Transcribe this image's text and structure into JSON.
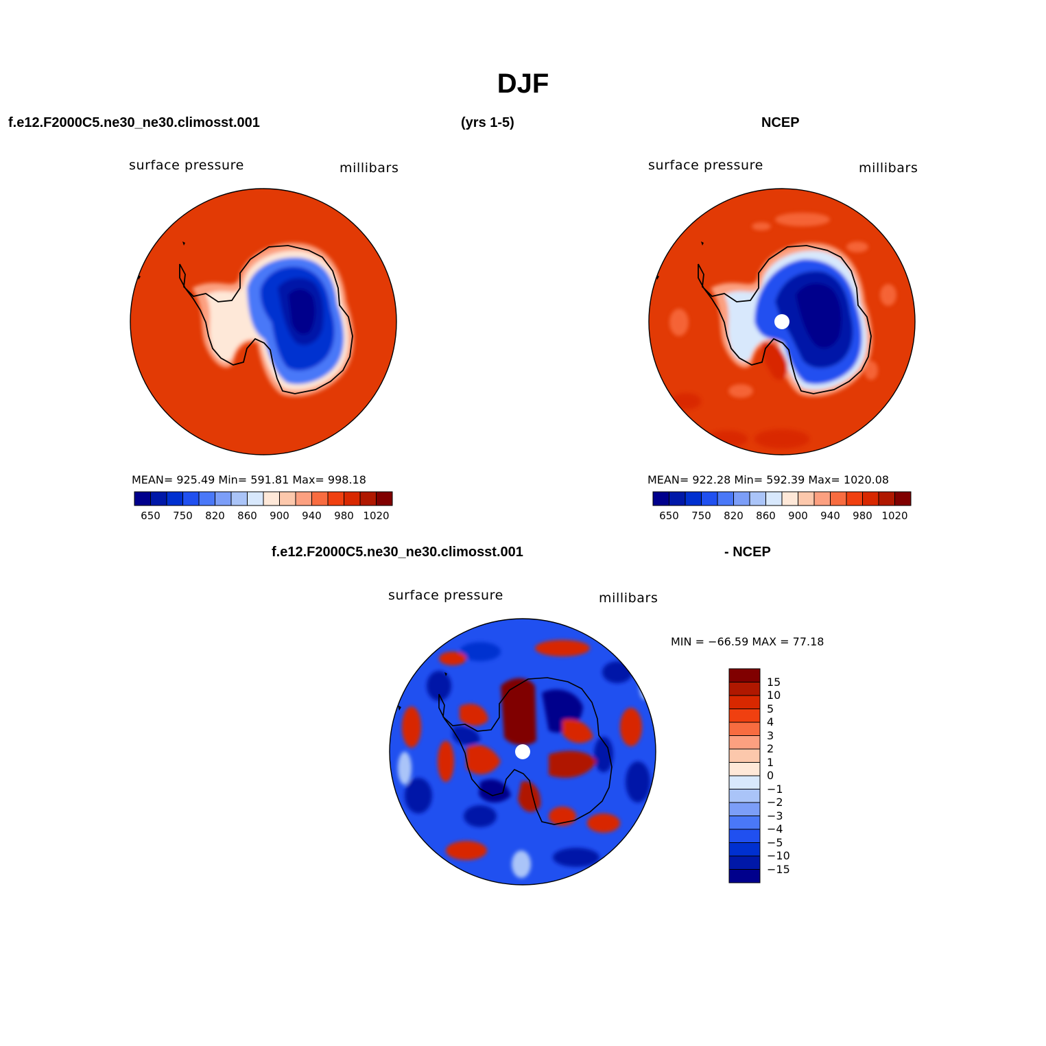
{
  "title": "DJF",
  "header": {
    "case": "f.e12.F2000C5.ne30_ne30.climosst.001",
    "years": "(yrs 1-5)",
    "obs": "NCEP"
  },
  "panels": {
    "model": {
      "variable": "surface pressure",
      "units": "millibars",
      "stats": "MEAN= 925.49   Min= 591.81   Max= 998.18"
    },
    "obs": {
      "variable": "surface pressure",
      "units": "millibars",
      "stats": "MEAN= 922.28   Min= 592.39   Max= 1020.08"
    },
    "diff": {
      "title_left": "f.e12.F2000C5.ne30_ne30.climosst.001",
      "title_right": "- NCEP",
      "variable": "surface pressure",
      "units": "millibars",
      "stats": "MIN = −66.59  MAX =   77.18"
    }
  },
  "colorbars": {
    "absolute": {
      "colors": [
        "#00008c",
        "#0018a8",
        "#0030d0",
        "#2050f0",
        "#4a78f8",
        "#7c9ef8",
        "#aac4f8",
        "#d8e8fc",
        "#fee8d8",
        "#fcc8ac",
        "#fca080",
        "#f86c40",
        "#f04010",
        "#d82800",
        "#b01800",
        "#800000"
      ],
      "tick_labels": [
        "650",
        "750",
        "820",
        "860",
        "900",
        "940",
        "980",
        "1020"
      ]
    },
    "difference": {
      "colors": [
        "#800000",
        "#b01800",
        "#d82800",
        "#f04010",
        "#f86c40",
        "#fca080",
        "#fcc8ac",
        "#fee8d8",
        "#d8e8fc",
        "#aac4f8",
        "#7c9ef8",
        "#4a78f8",
        "#2050f0",
        "#0030d0",
        "#0018a8",
        "#00008c"
      ],
      "tick_labels": [
        "15",
        "10",
        "5",
        "4",
        "3",
        "2",
        "1",
        "0",
        "−1",
        "−2",
        "−3",
        "−4",
        "−5",
        "−10",
        "−15"
      ]
    }
  }
}
